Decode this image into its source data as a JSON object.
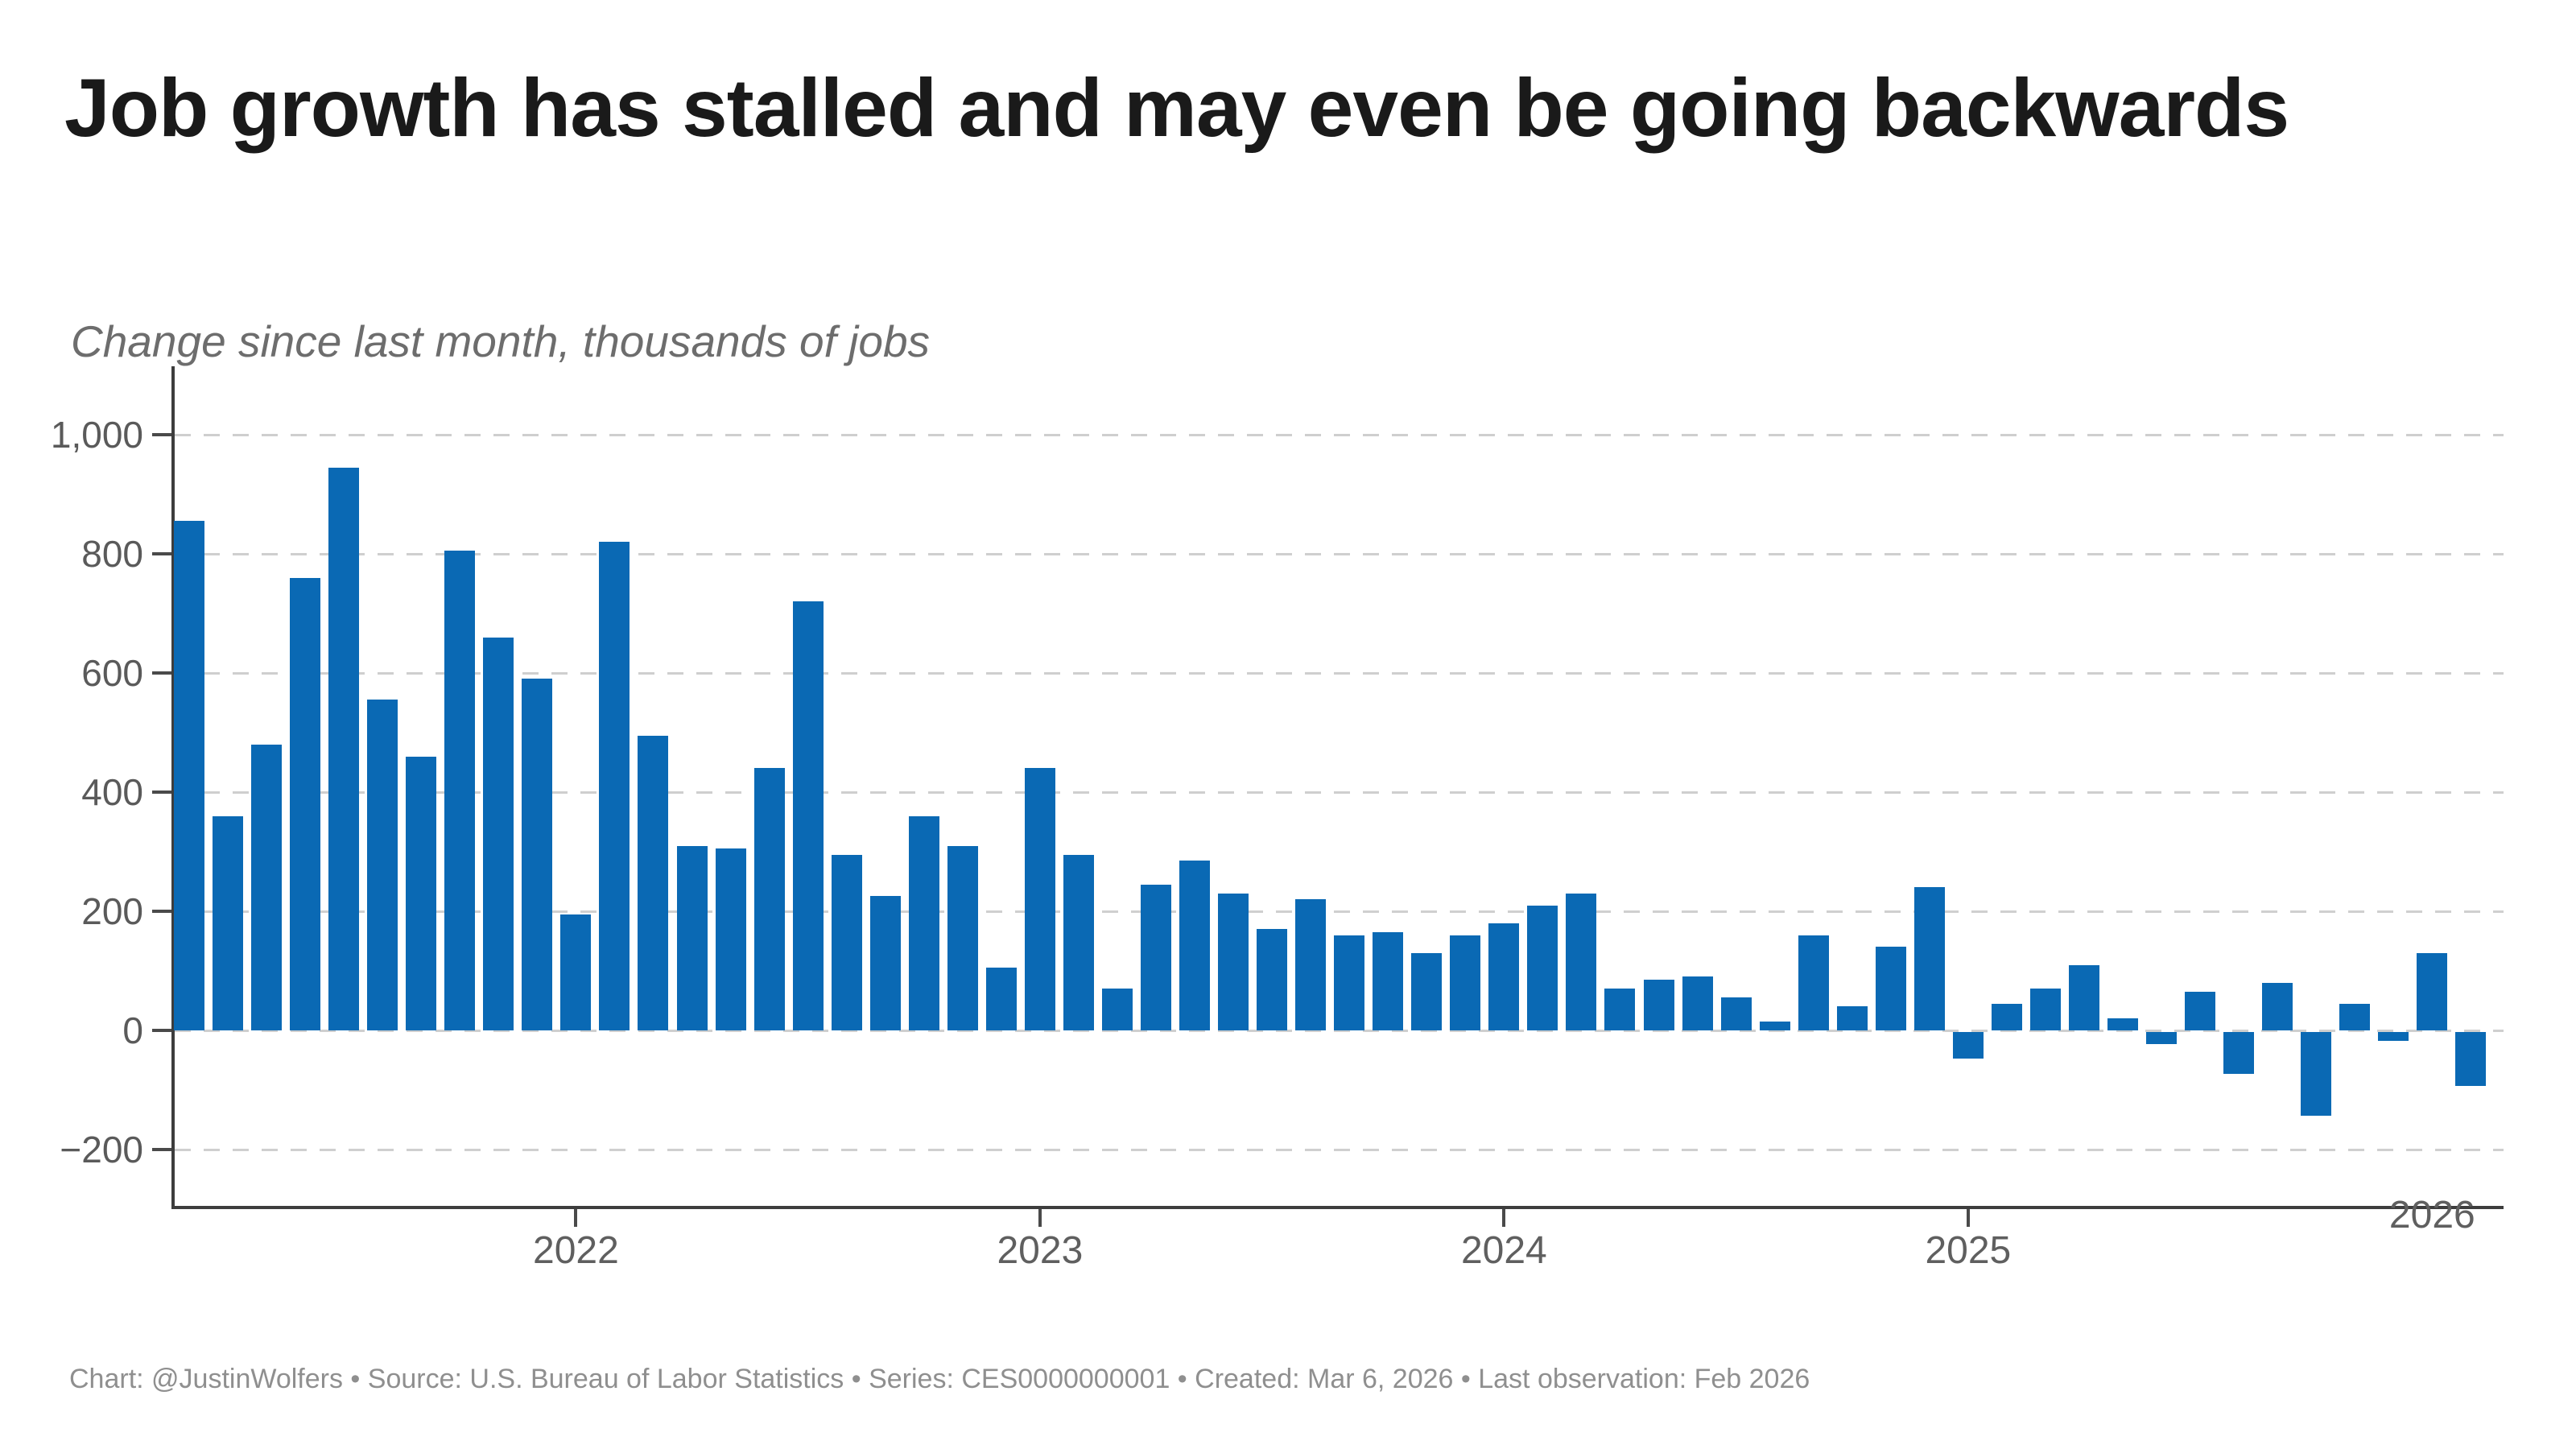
{
  "header": {
    "title": "Job growth has stalled and may even be going backwards",
    "subtitle": "Change since last month, thousands of jobs"
  },
  "footer": {
    "credit": "Chart: @JustinWolfers • Source: U.S. Bureau of Labor Statistics • Series: CES0000000001 • Created: Mar 6, 2026 • Last observation: Feb 2026"
  },
  "chart_data": {
    "type": "bar",
    "title": "Job growth has stalled and may even be going backwards",
    "subtitle": "Change since last month, thousands of jobs",
    "ylabel": "Change since last month, thousands of jobs",
    "xlabel": "",
    "grid": "horizontal-dashed",
    "legend": "none",
    "bar_color": "#0a69b4",
    "x": [
      "Mar 2021",
      "Apr 2021",
      "May 2021",
      "Jun 2021",
      "Jul 2021",
      "Aug 2021",
      "Sep 2021",
      "Oct 2021",
      "Nov 2021",
      "Dec 2021",
      "Jan 2022",
      "Feb 2022",
      "Mar 2022",
      "Apr 2022",
      "May 2022",
      "Jun 2022",
      "Jul 2022",
      "Aug 2022",
      "Sep 2022",
      "Oct 2022",
      "Nov 2022",
      "Dec 2022",
      "Jan 2023",
      "Feb 2023",
      "Mar 2023",
      "Apr 2023",
      "May 2023",
      "Jun 2023",
      "Jul 2023",
      "Aug 2023",
      "Sep 2023",
      "Oct 2023",
      "Nov 2023",
      "Dec 2023",
      "Jan 2024",
      "Feb 2024",
      "Mar 2024",
      "Apr 2024",
      "May 2024",
      "Jun 2024",
      "Jul 2024",
      "Aug 2024",
      "Sep 2024",
      "Oct 2024",
      "Nov 2024",
      "Dec 2024",
      "Jan 2025",
      "Feb 2025",
      "Mar 2025",
      "Apr 2025",
      "May 2025",
      "Jun 2025",
      "Jul 2025",
      "Aug 2025",
      "Sep 2025",
      "Oct 2025",
      "Nov 2025",
      "Dec 2025",
      "Jan 2026",
      "Feb 2026"
    ],
    "values": [
      855,
      360,
      480,
      760,
      945,
      555,
      460,
      805,
      660,
      590,
      195,
      820,
      495,
      310,
      305,
      440,
      720,
      295,
      225,
      360,
      310,
      105,
      440,
      295,
      70,
      245,
      285,
      230,
      170,
      220,
      160,
      165,
      130,
      160,
      180,
      210,
      230,
      70,
      85,
      90,
      55,
      15,
      160,
      40,
      140,
      240,
      -45,
      45,
      70,
      110,
      20,
      -20,
      65,
      -70,
      80,
      -140,
      45,
      -15,
      130,
      -90
    ],
    "y_axis": {
      "ticks": [
        1000,
        800,
        600,
        400,
        200,
        0,
        -200
      ],
      "tick_labels": [
        "1,000",
        "800",
        "600",
        "400",
        "200",
        "0",
        "−200"
      ],
      "ylim": [
        -300,
        1050
      ]
    },
    "x_axis": {
      "year_labels": [
        "2022",
        "2023",
        "2024",
        "2025",
        "2026"
      ]
    }
  }
}
